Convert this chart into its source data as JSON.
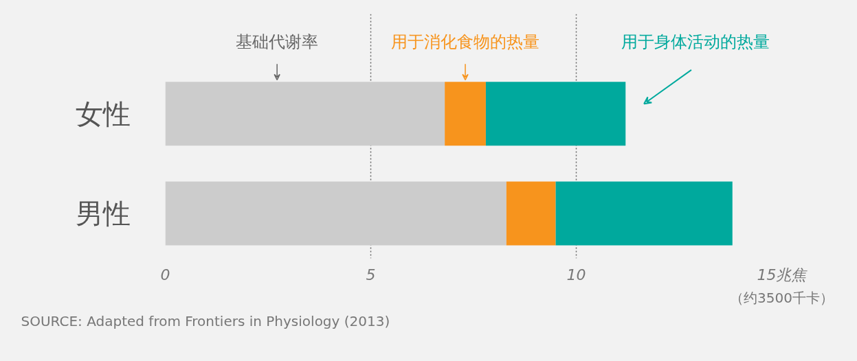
{
  "chart_data": {
    "type": "bar",
    "orientation": "horizontal",
    "stacked": true,
    "categories": [
      "女性",
      "男性"
    ],
    "series": [
      {
        "name": "基础代谢率",
        "color": "#cccccc",
        "values": [
          6.8,
          8.3
        ]
      },
      {
        "name": "用于消化食物的热量",
        "color": "#f7941d",
        "values": [
          1.0,
          1.2
        ]
      },
      {
        "name": "用于身体活动的热量",
        "color": "#00a99d",
        "values": [
          3.4,
          4.3
        ]
      }
    ],
    "xlim": [
      0,
      15
    ],
    "xticks": [
      0,
      5,
      10,
      {
        "value": 15,
        "label": "15兆焦"
      }
    ],
    "grid": "x",
    "annotations": [
      "（约3500千卡）",
      "SOURCE: Adapted from Frontiers in Physiology (2013)"
    ]
  }
}
